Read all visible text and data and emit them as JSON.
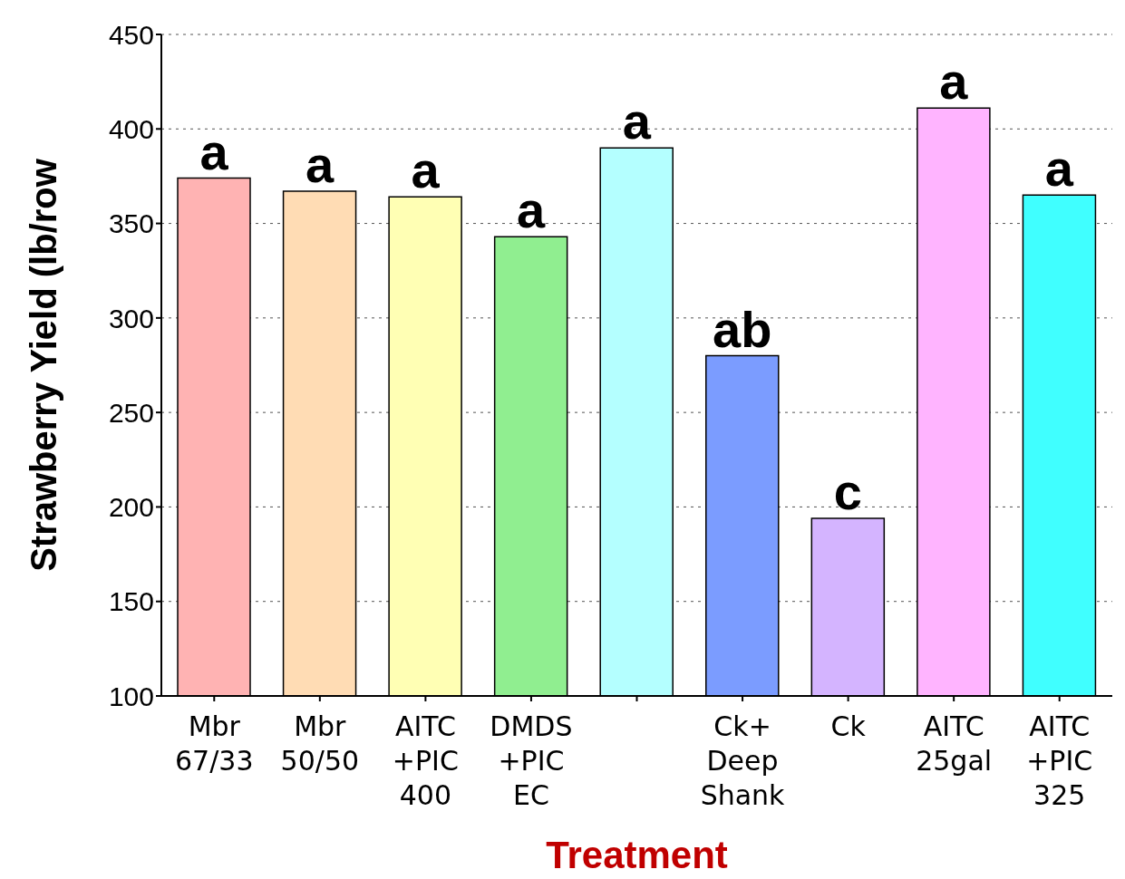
{
  "chart_data": {
    "type": "bar",
    "xlabel": "Treatment",
    "ylabel": "Strawberry Yield (lb/row",
    "categories": [
      "Mbr\n67/33",
      "Mbr\n50/50",
      "AITC\n+PIC\n400",
      "DMDS\n+PIC\nEC",
      null,
      "Ck+\nDeep\nShank",
      "Ck",
      "AITC\n25gal",
      "AITC\n+PIC\n325"
    ],
    "values": [
      374,
      367,
      364,
      343,
      390,
      280,
      194,
      411,
      365
    ],
    "colors": [
      "#ffb3b3",
      "#ffdcb4",
      "#ffffb4",
      "#90ee90",
      "#b4ffff",
      "#7b9cff",
      "#d4b4ff",
      "#ffb4ff",
      "#40ffff"
    ],
    "value_labels": [
      "a",
      "a",
      "a",
      "a",
      "a",
      "ab",
      "c",
      "a",
      "a"
    ],
    "ylim": [
      100,
      450
    ],
    "yticks": [
      100,
      150,
      200,
      250,
      300,
      350,
      400,
      450
    ],
    "grid": "y"
  }
}
